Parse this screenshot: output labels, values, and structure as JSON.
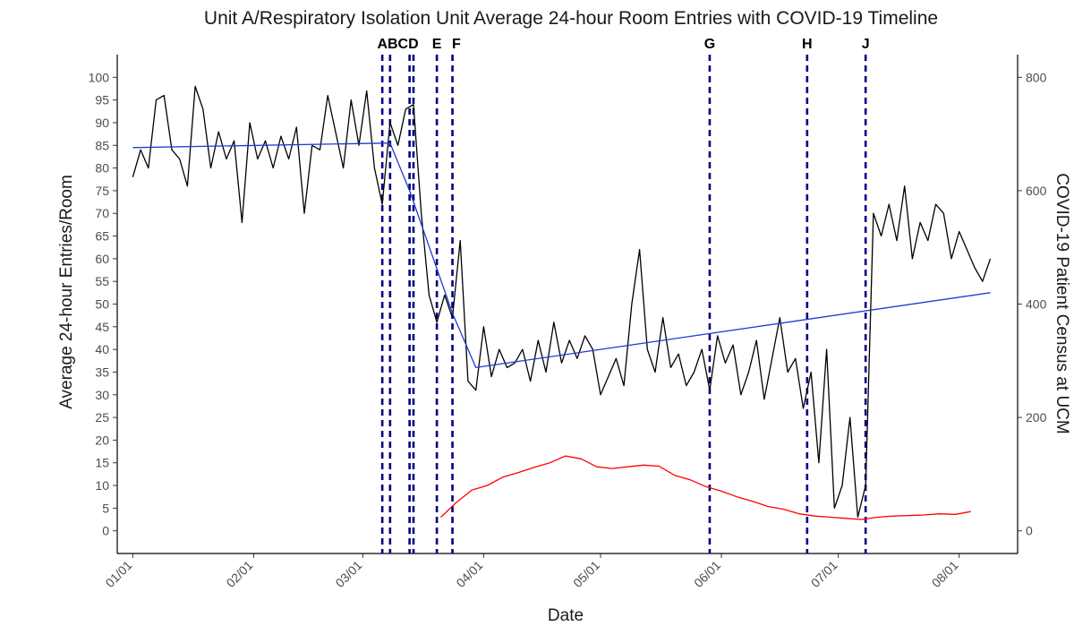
{
  "chart_data": {
    "type": "line",
    "title": "Unit A/Respiratory Isolation Unit Average 24-hour Room Entries with COVID-19 Timeline",
    "xlabel": "Date",
    "ylabel": "Average 24-hour Entries/Room",
    "y2label": "COVID-19 Patient Census at UCM",
    "x_ticks": [
      "01/01",
      "02/01",
      "03/01",
      "04/01",
      "05/01",
      "06/01",
      "07/01",
      "08/01"
    ],
    "x_range": [
      "2020-12-28",
      "2021-08-16"
    ],
    "ylim": [
      -5,
      105
    ],
    "y_ticks": [
      0,
      5,
      10,
      15,
      20,
      25,
      30,
      35,
      40,
      45,
      50,
      55,
      60,
      65,
      70,
      75,
      80,
      85,
      90,
      95,
      100
    ],
    "y2lim": [
      -40,
      840
    ],
    "y2_ticks": [
      0,
      200,
      400,
      600,
      800
    ],
    "grid": false,
    "events": [
      {
        "label": "A",
        "date": "2021-03-06"
      },
      {
        "label": "B",
        "date": "2021-03-08"
      },
      {
        "label": "C",
        "date": "2021-03-13"
      },
      {
        "label": "D",
        "date": "2021-03-14"
      },
      {
        "label": "E",
        "date": "2021-03-20"
      },
      {
        "label": "F",
        "date": "2021-03-24"
      },
      {
        "label": "G",
        "date": "2021-05-29"
      },
      {
        "label": "H",
        "date": "2021-06-23"
      },
      {
        "label": "J",
        "date": "2021-07-08"
      }
    ],
    "event_label_text": [
      {
        "text": "ABCD",
        "date": "2021-03-10"
      },
      {
        "text": "E",
        "date": "2021-03-20"
      },
      {
        "text": "F",
        "date": "2021-03-25"
      },
      {
        "text": "G",
        "date": "2021-05-29"
      },
      {
        "text": "H",
        "date": "2021-06-23"
      },
      {
        "text": "J",
        "date": "2021-07-08"
      }
    ],
    "series": [
      {
        "color": "#000000",
        "axis": "left",
        "x": [
          "2021-01-01",
          "2021-01-03",
          "2021-01-05",
          "2021-01-07",
          "2021-01-09",
          "2021-01-11",
          "2021-01-13",
          "2021-01-15",
          "2021-01-17",
          "2021-01-19",
          "2021-01-21",
          "2021-01-23",
          "2021-01-25",
          "2021-01-27",
          "2021-01-29",
          "2021-01-31",
          "2021-02-02",
          "2021-02-04",
          "2021-02-06",
          "2021-02-08",
          "2021-02-10",
          "2021-02-12",
          "2021-02-14",
          "2021-02-16",
          "2021-02-18",
          "2021-02-20",
          "2021-02-22",
          "2021-02-24",
          "2021-02-26",
          "2021-02-28",
          "2021-03-02",
          "2021-03-04",
          "2021-03-06",
          "2021-03-08",
          "2021-03-10",
          "2021-03-12",
          "2021-03-14",
          "2021-03-16",
          "2021-03-18",
          "2021-03-20",
          "2021-03-22",
          "2021-03-24",
          "2021-03-26",
          "2021-03-28",
          "2021-03-30",
          "2021-04-01",
          "2021-04-03",
          "2021-04-05",
          "2021-04-07",
          "2021-04-09",
          "2021-04-11",
          "2021-04-13",
          "2021-04-15",
          "2021-04-17",
          "2021-04-19",
          "2021-04-21",
          "2021-04-23",
          "2021-04-25",
          "2021-04-27",
          "2021-04-29",
          "2021-05-01",
          "2021-05-03",
          "2021-05-05",
          "2021-05-07",
          "2021-05-09",
          "2021-05-11",
          "2021-05-13",
          "2021-05-15",
          "2021-05-17",
          "2021-05-19",
          "2021-05-21",
          "2021-05-23",
          "2021-05-25",
          "2021-05-27",
          "2021-05-29",
          "2021-05-31",
          "2021-06-02",
          "2021-06-04",
          "2021-06-06",
          "2021-06-08",
          "2021-06-10",
          "2021-06-12",
          "2021-06-14",
          "2021-06-16",
          "2021-06-18",
          "2021-06-20",
          "2021-06-22",
          "2021-06-24",
          "2021-06-26",
          "2021-06-28",
          "2021-06-30",
          "2021-07-02",
          "2021-07-04",
          "2021-07-06",
          "2021-07-08",
          "2021-07-10",
          "2021-07-12",
          "2021-07-14",
          "2021-07-16",
          "2021-07-18",
          "2021-07-20",
          "2021-07-22",
          "2021-07-24",
          "2021-07-26",
          "2021-07-28",
          "2021-07-30",
          "2021-08-01",
          "2021-08-03",
          "2021-08-05",
          "2021-08-07",
          "2021-08-09"
        ],
        "values": [
          78,
          84,
          80,
          95,
          96,
          84,
          82,
          76,
          98,
          93,
          80,
          88,
          82,
          86,
          68,
          90,
          82,
          86,
          80,
          87,
          82,
          89,
          70,
          85,
          84,
          96,
          88,
          80,
          95,
          85,
          97,
          80,
          72,
          90,
          85,
          93,
          94,
          70,
          52,
          46,
          52,
          47,
          64,
          33,
          31,
          45,
          34,
          40,
          36,
          37,
          40,
          33,
          42,
          35,
          46,
          37,
          42,
          38,
          43,
          40,
          30,
          34,
          38,
          32,
          50,
          62,
          40,
          35,
          47,
          36,
          39,
          32,
          35,
          40,
          31,
          43,
          37,
          41,
          30,
          35,
          42,
          29,
          38,
          47,
          35,
          38,
          27,
          35,
          15,
          40,
          5,
          10,
          25,
          3,
          10,
          70,
          65,
          72,
          64,
          76,
          60,
          68,
          64,
          72,
          70,
          60,
          66,
          62,
          58,
          55,
          60
        ]
      },
      {
        "color": "#1f3bd6",
        "axis": "left",
        "x": [
          "2021-01-01",
          "2021-03-08",
          "2021-03-13",
          "2021-03-24",
          "2021-03-30",
          "2021-08-09"
        ],
        "values": [
          84.5,
          85.5,
          75,
          48,
          36,
          52.5
        ]
      },
      {
        "color": "#ff0000",
        "axis": "right",
        "x": [
          "2021-03-21",
          "2021-03-25",
          "2021-03-29",
          "2021-04-02",
          "2021-04-06",
          "2021-04-10",
          "2021-04-14",
          "2021-04-18",
          "2021-04-22",
          "2021-04-26",
          "2021-04-30",
          "2021-05-04",
          "2021-05-08",
          "2021-05-12",
          "2021-05-16",
          "2021-05-20",
          "2021-05-24",
          "2021-05-28",
          "2021-06-01",
          "2021-06-05",
          "2021-06-09",
          "2021-06-13",
          "2021-06-17",
          "2021-06-21",
          "2021-06-25",
          "2021-06-29",
          "2021-07-03",
          "2021-07-07",
          "2021-07-11",
          "2021-07-15",
          "2021-07-19",
          "2021-07-23",
          "2021-07-27",
          "2021-07-31",
          "2021-08-04"
        ],
        "values": [
          24,
          50,
          72,
          80,
          95,
          103,
          112,
          120,
          132,
          127,
          113,
          110,
          113,
          116,
          114,
          98,
          90,
          78,
          70,
          60,
          52,
          43,
          38,
          30,
          26,
          24,
          22,
          20,
          24,
          26,
          27,
          28,
          30,
          29,
          34
        ]
      }
    ]
  }
}
